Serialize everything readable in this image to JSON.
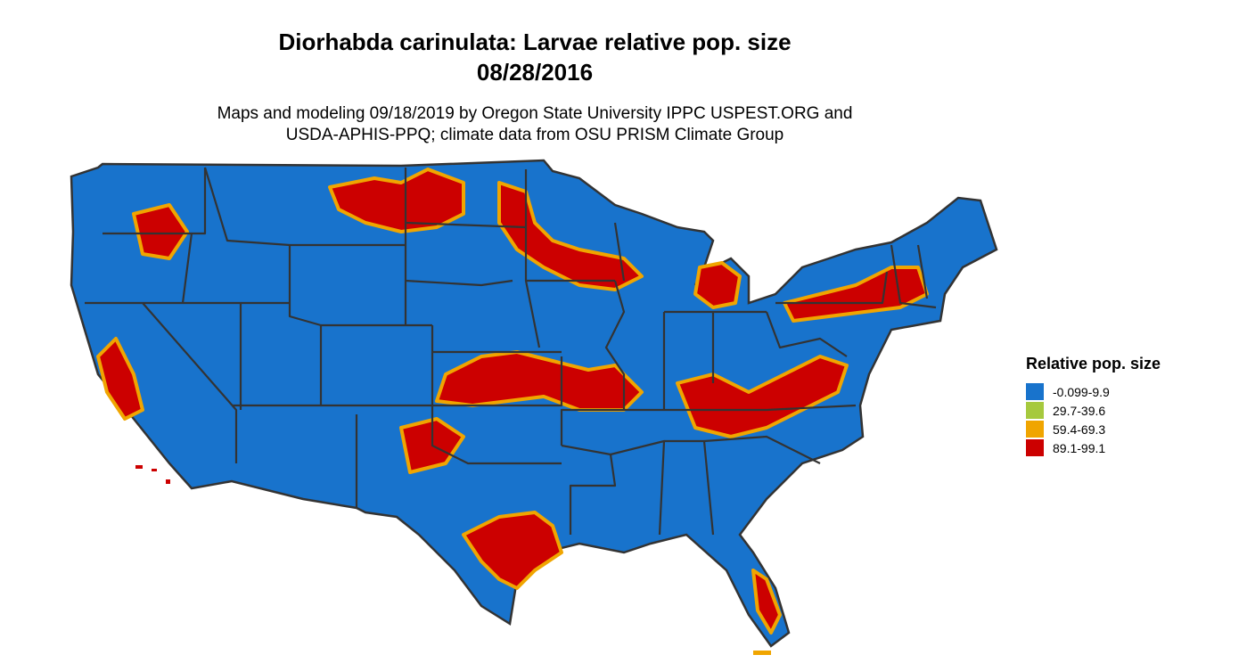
{
  "title_line1": "Diorhabda carinulata: Larvae relative pop. size",
  "title_line2": "08/28/2016",
  "subtitle_line1": "Maps and modeling 09/18/2019 by Oregon State University IPPC USPEST.ORG and",
  "subtitle_line2": "USDA-APHIS-PPQ; climate data from OSU PRISM Climate Group",
  "legend": {
    "title": "Relative pop. size",
    "items": [
      {
        "label": "-0.099-9.9",
        "color": "#1873CC"
      },
      {
        "label": "29.7-39.6",
        "color": "#A6C93E"
      },
      {
        "label": "59.4-69.3",
        "color": "#F0A500"
      },
      {
        "label": "89.1-99.1",
        "color": "#CC0000"
      }
    ]
  },
  "colors": {
    "low": "#1873CC",
    "mid_low": "#A6C93E",
    "mid_high": "#F0A500",
    "high": "#CC0000",
    "borders": "#333333"
  }
}
